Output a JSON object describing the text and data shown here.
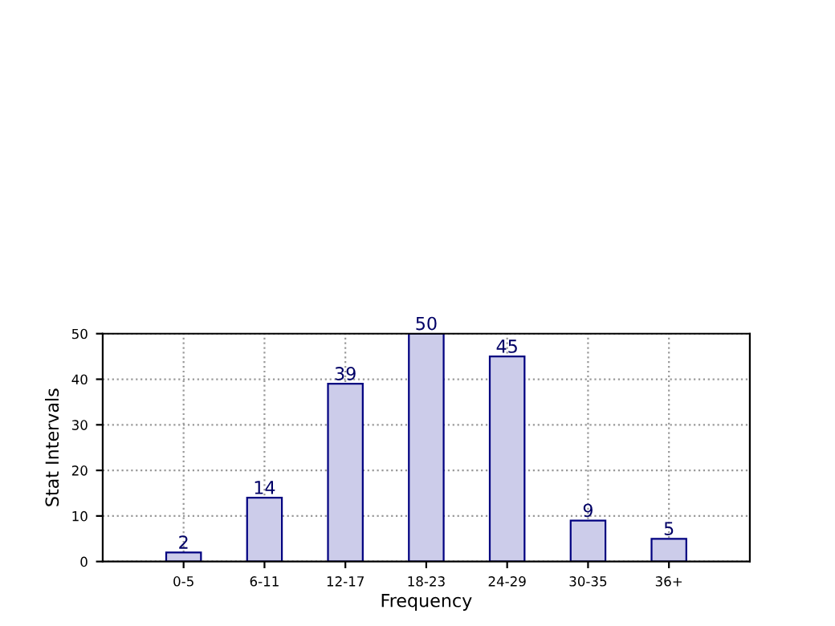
{
  "chart_data": {
    "type": "bar",
    "xlabel": "Frequency",
    "ylabel": "Stat Intervals",
    "categories": [
      "0-5",
      "6-11",
      "12-17",
      "18-23",
      "24-29",
      "30-35",
      "36+"
    ],
    "values": [
      2,
      14,
      39,
      50,
      45,
      9,
      5
    ],
    "color": "#ccccea",
    "data_labels": true,
    "ylim": [
      0,
      50
    ],
    "yticks": [
      0,
      10,
      20,
      30,
      40,
      50
    ],
    "grid": true
  }
}
